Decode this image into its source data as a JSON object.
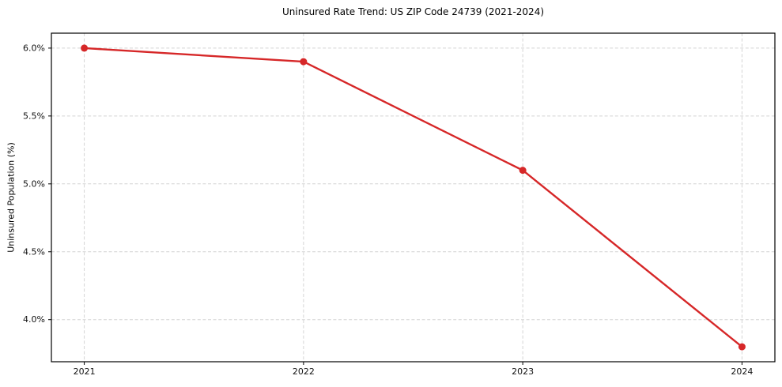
{
  "chart_data": {
    "type": "line",
    "title": "Uninsured Rate Trend: US ZIP Code 24739 (2021-2024)",
    "xlabel": "",
    "ylabel": "Uninsured Population (%)",
    "x": [
      2021,
      2022,
      2023,
      2024
    ],
    "series": [
      {
        "name": "Uninsured rate",
        "values": [
          6.0,
          5.9,
          5.1,
          3.8
        ]
      }
    ],
    "xticks": [
      2021,
      2022,
      2023,
      2024
    ],
    "xtick_labels": [
      "2021",
      "2022",
      "2023",
      "2024"
    ],
    "yticks": [
      4.0,
      4.5,
      5.0,
      5.5,
      6.0
    ],
    "ytick_labels": [
      "4.0%",
      "4.5%",
      "5.0%",
      "5.5%",
      "6.0%"
    ],
    "xlim": [
      2020.85,
      2024.15
    ],
    "ylim": [
      3.69,
      6.11
    ],
    "grid": true,
    "grid_style": "dashed",
    "legend": false,
    "line_color": "#d62728",
    "marker": "circle",
    "marker_radius": 4.5
  }
}
